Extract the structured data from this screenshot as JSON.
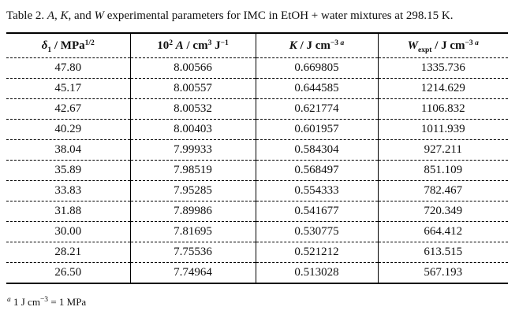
{
  "caption": {
    "segments": [
      {
        "t": "Table 2. "
      },
      {
        "t": "A",
        "i": true
      },
      {
        "t": ", "
      },
      {
        "t": "K",
        "i": true
      },
      {
        "t": ", and "
      },
      {
        "t": "W",
        "i": true
      },
      {
        "t": " experimental parameters for IMC in EtOH + water mixtures at 298.15 K."
      }
    ]
  },
  "table": {
    "columns": [
      {
        "name": "delta1-solubility-parameter",
        "segments": [
          {
            "t": "δ",
            "i": true
          },
          {
            "t": "1",
            "sub": true
          },
          {
            "t": " / MPa"
          },
          {
            "t": "1/2",
            "sup": true
          }
        ]
      },
      {
        "name": "A-parameter",
        "segments": [
          {
            "t": "10"
          },
          {
            "t": "2",
            "sup": true
          },
          {
            "t": " "
          },
          {
            "t": "A",
            "i": true
          },
          {
            "t": " / cm"
          },
          {
            "t": "3",
            "sup": true
          },
          {
            "t": " J"
          },
          {
            "t": "−1",
            "sup": true
          }
        ]
      },
      {
        "name": "K-parameter",
        "segments": [
          {
            "t": "K",
            "i": true
          },
          {
            "t": " / J cm"
          },
          {
            "t": "−3",
            "sup": true
          },
          {
            "t": " a",
            "sup": true,
            "i": true
          }
        ]
      },
      {
        "name": "W-expt-parameter",
        "segments": [
          {
            "t": "W",
            "i": true
          },
          {
            "t": "expt",
            "sub": true
          },
          {
            "t": " / J cm"
          },
          {
            "t": "−3",
            "sup": true
          },
          {
            "t": " a",
            "sup": true,
            "i": true
          }
        ]
      }
    ],
    "rows": [
      [
        "47.80",
        "8.00566",
        "0.669805",
        "1335.736"
      ],
      [
        "45.17",
        "8.00557",
        "0.644585",
        "1214.629"
      ],
      [
        "42.67",
        "8.00532",
        "0.621774",
        "1106.832"
      ],
      [
        "40.29",
        "8.00403",
        "0.601957",
        "1011.939"
      ],
      [
        "38.04",
        "7.99933",
        "0.584304",
        "927.211"
      ],
      [
        "35.89",
        "7.98519",
        "0.568497",
        "851.109"
      ],
      [
        "33.83",
        "7.95285",
        "0.554333",
        "782.467"
      ],
      [
        "31.88",
        "7.89986",
        "0.541677",
        "720.349"
      ],
      [
        "30.00",
        "7.81695",
        "0.530775",
        "664.412"
      ],
      [
        "28.21",
        "7.75536",
        "0.521212",
        "613.515"
      ],
      [
        "26.50",
        "7.74964",
        "0.513028",
        "567.193"
      ]
    ]
  },
  "footnote": {
    "segments": [
      {
        "t": "a",
        "sup": true,
        "i": true
      },
      {
        "t": " 1 J cm"
      },
      {
        "t": "−3",
        "sup": true
      },
      {
        "t": " = 1 MPa"
      }
    ]
  },
  "colors": {
    "text": "#101010",
    "border": "#000000",
    "background": "#ffffff"
  }
}
